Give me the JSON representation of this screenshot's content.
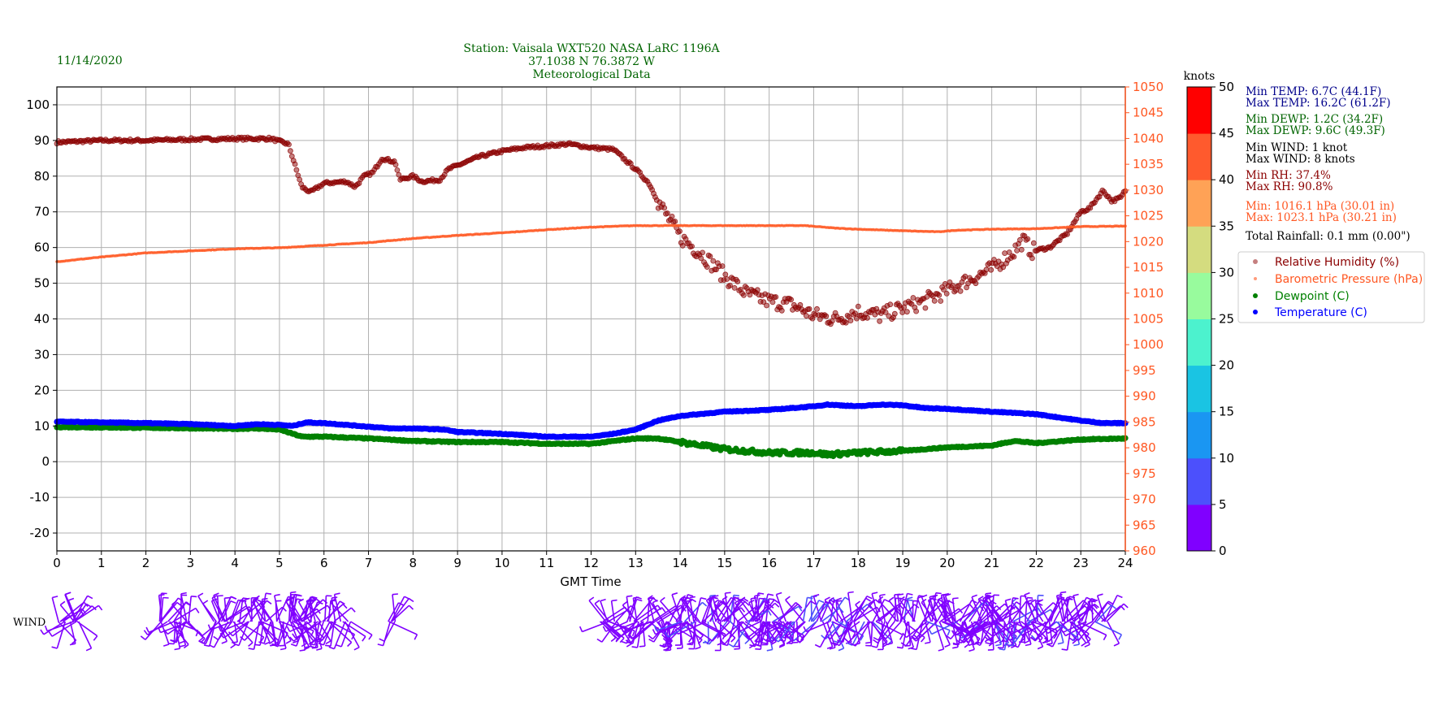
{
  "header": {
    "date": "11/14/2020",
    "title_lines": [
      "Station:  Vaisala WXT520  NASA LaRC 1196A",
      "37.1038 N 76.3872 W",
      "Meteorological Data"
    ]
  },
  "colors": {
    "rh": "#8b0000",
    "pressure": "#ff5722",
    "dewpoint": "#008000",
    "temperature": "#0000ff",
    "header": "#006400"
  },
  "stats": [
    {
      "text": "Min TEMP: 6.7C (44.1F)",
      "color": "#00008b"
    },
    {
      "text": "Max TEMP: 16.2C (61.2F)",
      "color": "#00008b"
    },
    {
      "text": "Min DEWP: 1.2C (34.2F)",
      "color": "#006400"
    },
    {
      "text": "Max DEWP: 9.6C (49.3F)",
      "color": "#006400"
    },
    {
      "text": "Min WIND: 1 knot",
      "color": "#000000"
    },
    {
      "text": "Max WIND: 8 knots",
      "color": "#000000"
    },
    {
      "text": "Min RH: 37.4%",
      "color": "#8b0000"
    },
    {
      "text": "Max RH: 90.8%",
      "color": "#8b0000"
    },
    {
      "text": "Min: 1016.1 hPa (30.01 in)",
      "color": "#ff5722"
    },
    {
      "text": "Max: 1023.1 hPa (30.21 in)",
      "color": "#ff5722"
    },
    {
      "text": "Total Rainfall: 0.1 mm (0.00\")",
      "color": "#000000"
    }
  ],
  "colorbar": {
    "label": "knots",
    "ticks": [
      "0",
      "5",
      "10",
      "15",
      "20",
      "25",
      "30",
      "35",
      "40",
      "45",
      "50"
    ],
    "colors": [
      "#8000ff",
      "#4c50fc",
      "#1a96f2",
      "#1ac4e3",
      "#4cf2ce",
      "#98fb9d",
      "#d4dc7f",
      "#ffa256",
      "#ff5a2d",
      "#ff0000"
    ]
  },
  "chart_data": {
    "type": "line",
    "xlabel": "GMT Time",
    "x_ticks": [
      "0",
      "1",
      "2",
      "3",
      "4",
      "5",
      "6",
      "7",
      "8",
      "9",
      "10",
      "11",
      "12",
      "13",
      "14",
      "15",
      "16",
      "17",
      "18",
      "19",
      "20",
      "21",
      "22",
      "23",
      "24"
    ],
    "xlim": [
      0,
      24
    ],
    "ylim_left": [
      -25,
      105
    ],
    "y_ticks_left": [
      "-20",
      "-10",
      "0",
      "10",
      "20",
      "30",
      "40",
      "50",
      "60",
      "70",
      "80",
      "90",
      "100"
    ],
    "ylim_right": [
      960,
      1050
    ],
    "y_ticks_right": [
      "960",
      "965",
      "970",
      "975",
      "980",
      "985",
      "990",
      "995",
      "1000",
      "1005",
      "1010",
      "1015",
      "1020",
      "1025",
      "1030",
      "1035",
      "1040",
      "1045",
      "1050"
    ],
    "grid": true,
    "legend_position": "right",
    "legend": [
      "Relative Humidity (%)",
      "Barometric Pressure (hPa)",
      "Dewpoint (C)",
      "Temperature (C)"
    ],
    "wind_label": "WIND",
    "series": [
      {
        "name": "Relative Humidity (%)",
        "axis": "left",
        "points": [
          [
            0,
            89.5
          ],
          [
            1,
            90
          ],
          [
            2,
            90
          ],
          [
            3,
            90.3
          ],
          [
            4,
            90.5
          ],
          [
            4.8,
            90.5
          ],
          [
            5.2,
            89
          ],
          [
            5.3,
            85
          ],
          [
            5.5,
            77
          ],
          [
            5.7,
            75.5
          ],
          [
            6,
            78
          ],
          [
            6.5,
            78.5
          ],
          [
            6.7,
            77
          ],
          [
            6.9,
            80
          ],
          [
            7.1,
            81
          ],
          [
            7.3,
            85
          ],
          [
            7.6,
            84
          ],
          [
            7.7,
            79
          ],
          [
            8,
            80
          ],
          [
            8.2,
            78.5
          ],
          [
            8.6,
            79
          ],
          [
            8.8,
            82
          ],
          [
            9,
            83
          ],
          [
            9.5,
            85.5
          ],
          [
            10,
            87
          ],
          [
            10.5,
            88
          ],
          [
            11,
            88.5
          ],
          [
            11.5,
            89
          ],
          [
            12,
            88
          ],
          [
            12.5,
            87.5
          ],
          [
            13,
            82
          ],
          [
            13.3,
            78
          ],
          [
            13.5,
            73
          ],
          [
            14,
            63
          ],
          [
            14.5,
            58
          ],
          [
            15,
            52
          ],
          [
            15.5,
            47
          ],
          [
            16,
            45
          ],
          [
            16.5,
            44
          ],
          [
            17,
            41
          ],
          [
            17.5,
            40
          ],
          [
            18,
            42
          ],
          [
            18.5,
            41
          ],
          [
            19,
            43
          ],
          [
            19.5,
            45
          ],
          [
            20,
            48
          ],
          [
            20.5,
            51
          ],
          [
            21,
            54
          ],
          [
            21.5,
            59
          ],
          [
            21.7,
            62
          ],
          [
            21.9,
            59
          ],
          [
            22.3,
            60
          ],
          [
            22.7,
            64
          ],
          [
            23,
            70
          ],
          [
            23.2,
            71
          ],
          [
            23.5,
            76
          ],
          [
            23.7,
            73
          ],
          [
            23.9,
            74
          ],
          [
            24,
            76
          ]
        ]
      },
      {
        "name": "Barometric Pressure (hPa)",
        "axis": "right",
        "points": [
          [
            0,
            1016.1
          ],
          [
            1,
            1017
          ],
          [
            2,
            1017.8
          ],
          [
            3,
            1018.2
          ],
          [
            4,
            1018.6
          ],
          [
            5,
            1018.8
          ],
          [
            6,
            1019.3
          ],
          [
            7,
            1019.8
          ],
          [
            8,
            1020.6
          ],
          [
            9,
            1021.2
          ],
          [
            10,
            1021.7
          ],
          [
            11,
            1022.3
          ],
          [
            12,
            1022.8
          ],
          [
            13,
            1023.1
          ],
          [
            16.8,
            1023.1
          ],
          [
            17.5,
            1022.6
          ],
          [
            18,
            1022.4
          ],
          [
            19,
            1022.1
          ],
          [
            19.8,
            1021.9
          ],
          [
            20.2,
            1022.2
          ],
          [
            21,
            1022.4
          ],
          [
            22,
            1022.5
          ],
          [
            23,
            1022.9
          ],
          [
            24,
            1023
          ]
        ]
      },
      {
        "name": "Dewpoint (C)",
        "axis": "left",
        "points": [
          [
            0,
            9.7
          ],
          [
            2,
            9.5
          ],
          [
            4,
            9.2
          ],
          [
            4.5,
            9.3
          ],
          [
            5,
            9
          ],
          [
            5.5,
            7
          ],
          [
            6,
            7
          ],
          [
            7,
            6.5
          ],
          [
            8,
            5.8
          ],
          [
            9,
            5.5
          ],
          [
            10,
            5.5
          ],
          [
            11,
            5
          ],
          [
            12,
            5
          ],
          [
            13,
            6.5
          ],
          [
            13.5,
            6.5
          ],
          [
            14,
            5.5
          ],
          [
            15,
            3.5
          ],
          [
            16,
            2.5
          ],
          [
            17,
            2.5
          ],
          [
            17.3,
            2
          ],
          [
            18,
            2.5
          ],
          [
            19,
            3
          ],
          [
            20,
            4
          ],
          [
            21,
            4.5
          ],
          [
            21.5,
            5.8
          ],
          [
            22,
            5.2
          ],
          [
            23,
            6.2
          ],
          [
            24,
            6.5
          ]
        ]
      },
      {
        "name": "Temperature (C)",
        "axis": "left",
        "points": [
          [
            0,
            11.2
          ],
          [
            2,
            10.8
          ],
          [
            3,
            10.5
          ],
          [
            4,
            10
          ],
          [
            4.5,
            10.5
          ],
          [
            5,
            10.3
          ],
          [
            5.3,
            10
          ],
          [
            5.6,
            11
          ],
          [
            6,
            10.8
          ],
          [
            6.5,
            10.3
          ],
          [
            7,
            9.8
          ],
          [
            7.5,
            9.3
          ],
          [
            8,
            9.3
          ],
          [
            8.7,
            9
          ],
          [
            9,
            8.3
          ],
          [
            10,
            7.8
          ],
          [
            11,
            7
          ],
          [
            12,
            7
          ],
          [
            12.5,
            7.8
          ],
          [
            13,
            9
          ],
          [
            13.5,
            11.5
          ],
          [
            14,
            12.8
          ],
          [
            15,
            14
          ],
          [
            16,
            14.5
          ],
          [
            17,
            15.5
          ],
          [
            17.3,
            16
          ],
          [
            18,
            15.5
          ],
          [
            18.5,
            16
          ],
          [
            19,
            15.8
          ],
          [
            19.5,
            15
          ],
          [
            20,
            14.8
          ],
          [
            21,
            14
          ],
          [
            22,
            13.3
          ],
          [
            23,
            11.5
          ],
          [
            23.5,
            10.8
          ],
          [
            24,
            10.8
          ]
        ]
      }
    ],
    "wind_segments": [
      [
        0,
        0.5,
        2
      ],
      [
        2.3,
        3,
        2
      ],
      [
        3.5,
        4.7,
        3
      ],
      [
        4.8,
        6.6,
        5
      ],
      [
        7.4,
        7.6,
        2
      ],
      [
        12.2,
        12.6,
        2
      ],
      [
        12.8,
        13.8,
        3
      ],
      [
        13.9,
        17.8,
        7
      ],
      [
        17.8,
        23.6,
        6
      ]
    ]
  }
}
